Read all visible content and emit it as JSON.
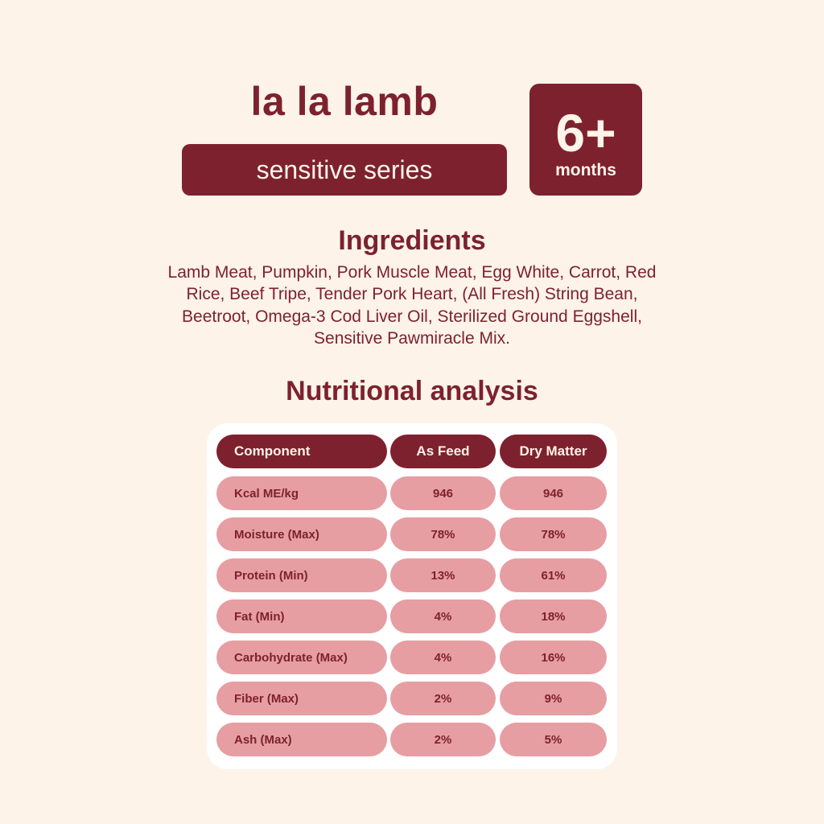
{
  "header": {
    "product_name": "la la lamb",
    "series": "sensitive series",
    "age_value": "6+",
    "age_unit": "months"
  },
  "ingredients": {
    "title": "Ingredients",
    "text": "Lamb Meat, Pumpkin, Pork Muscle Meat, Egg White, Carrot, Red Rice, Beef Tripe, Tender Pork Heart, (All Fresh) String Bean, Beetroot, Omega-3 Cod Liver Oil, Sterilized Ground Eggshell, Sensitive Pawmiracle Mix."
  },
  "nutrition": {
    "title": "Nutritional analysis",
    "columns": [
      "Component",
      "As Feed",
      "Dry Matter"
    ],
    "rows": [
      [
        "Kcal ME/kg",
        "946",
        "946"
      ],
      [
        "Moisture (Max)",
        "78%",
        "78%"
      ],
      [
        "Protein (Min)",
        "13%",
        "61%"
      ],
      [
        "Fat (Min)",
        "4%",
        "18%"
      ],
      [
        "Carbohydrate (Max)",
        "4%",
        "16%"
      ],
      [
        "Fiber (Max)",
        "2%",
        "9%"
      ],
      [
        "Ash (Max)",
        "2%",
        "5%"
      ]
    ]
  },
  "colors": {
    "brand": "#7e212e",
    "background": "#fdf3e8",
    "row_fill": "#e69ea3",
    "card": "#ffffff"
  }
}
